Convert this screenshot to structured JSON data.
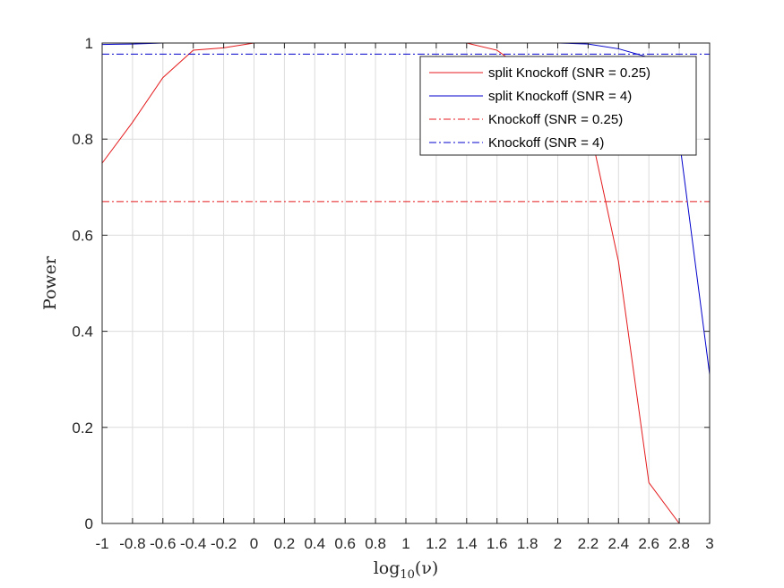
{
  "chart_data": {
    "type": "line",
    "title": "",
    "xlabel": "log10(ν)",
    "ylabel": "Power",
    "xlim": [
      -1,
      3
    ],
    "ylim": [
      0,
      1
    ],
    "grid": true,
    "legend_position": "top-right",
    "x_ticks": [
      -1,
      -0.8,
      -0.6,
      -0.4,
      -0.2,
      0,
      0.2,
      0.4,
      0.6,
      0.8,
      1,
      1.2,
      1.4,
      1.6,
      1.8,
      2,
      2.2,
      2.4,
      2.6,
      2.8,
      3
    ],
    "x_tick_labels": [
      "-1",
      "-0.8",
      "-0.6",
      "-0.4",
      "-0.2",
      "0",
      "0.2",
      "0.4",
      "0.6",
      "0.8",
      "1",
      "1.2",
      "1.4",
      "1.6",
      "1.8",
      "2",
      "2.2",
      "2.4",
      "2.6",
      "2.8",
      "3"
    ],
    "y_ticks": [
      0,
      0.2,
      0.4,
      0.6,
      0.8,
      1
    ],
    "y_tick_labels": [
      "0",
      "0.2",
      "0.4",
      "0.6",
      "0.8",
      "1"
    ],
    "series": [
      {
        "name": "split Knockoff (SNR = 0.25)",
        "color": "#e41a1c",
        "style": "solid",
        "x": [
          -1,
          -0.8,
          -0.6,
          -0.4,
          -0.2,
          0,
          0.2,
          0.4,
          0.6,
          0.8,
          1,
          1.2,
          1.4,
          1.6,
          1.8,
          2,
          2.2,
          2.4,
          2.6,
          2.8,
          3
        ],
        "y": [
          0.75,
          0.835,
          0.928,
          0.985,
          0.99,
          1,
          1,
          1,
          1,
          1,
          1,
          1,
          1,
          0.985,
          0.94,
          0.89,
          0.84,
          0.545,
          0.085,
          0,
          0
        ]
      },
      {
        "name": "split Knockoff (SNR = 4)",
        "color": "#0000cc",
        "style": "solid",
        "x": [
          -1,
          -0.8,
          -0.6,
          -0.4,
          -0.2,
          0,
          0.2,
          0.4,
          0.6,
          0.8,
          1,
          1.2,
          1.4,
          1.6,
          1.8,
          2,
          2.2,
          2.4,
          2.6,
          2.8,
          3
        ],
        "y": [
          0.997,
          0.998,
          1,
          1,
          1,
          1,
          1,
          1,
          1,
          1,
          1,
          1,
          1,
          1,
          1,
          1,
          0.998,
          0.988,
          0.97,
          0.8,
          0.31
        ]
      },
      {
        "name": "Knockoff (SNR = 0.25)",
        "color": "#e41a1c",
        "style": "dashdot",
        "x": [
          -1,
          3
        ],
        "y": [
          0.67,
          0.67
        ]
      },
      {
        "name": "Knockoff (SNR = 4)",
        "color": "#0000cc",
        "style": "dashdot",
        "x": [
          -1,
          3
        ],
        "y": [
          0.977,
          0.977
        ]
      }
    ]
  }
}
